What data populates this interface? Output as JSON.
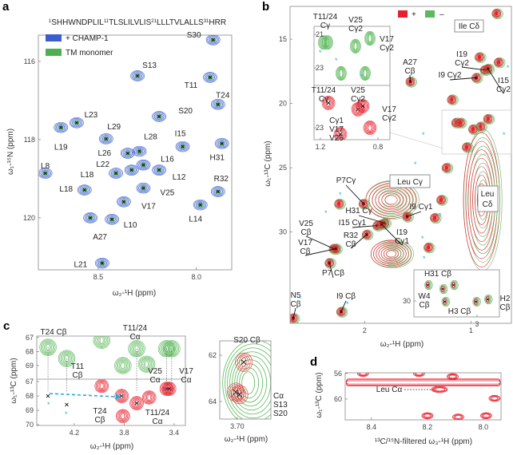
{
  "colors": {
    "champ": "#3a5fcd",
    "tm": "#4caf50",
    "plus": "#e8202e",
    "minus": "#5cb85c",
    "star": "#29a9e0"
  },
  "panel_letters": [
    "a",
    "b",
    "c",
    "d"
  ],
  "chart_data": [
    {
      "panel": "a",
      "type": "scatter",
      "sequence": [
        {
          "sup": "1",
          "text": "SHHWNDPLIL"
        },
        {
          "sup": "11",
          "text": "TLSLILVLIS"
        },
        {
          "sup": "21",
          "text": "LLLTVLALLS"
        },
        {
          "sup": "31",
          "text": "HRR"
        }
      ],
      "xlabel": "ω₂-¹H (ppm)",
      "ylabel": "ω₁-¹⁵N (ppm)",
      "xlim": [
        8.805,
        7.82
      ],
      "ylim": [
        115.33,
        121.33
      ],
      "xticks": [
        8.5,
        8.0
      ],
      "yticks": [
        116,
        118,
        120
      ],
      "legend": [
        {
          "name": "+ CHAMP-1",
          "color": "#3a5fcd"
        },
        {
          "name": "TM monomer",
          "color": "#4caf50"
        }
      ],
      "legend_position": "top-left",
      "peaks": [
        {
          "label": "S30",
          "h": 7.915,
          "n": 115.45
        },
        {
          "label": "S13",
          "h": 8.3,
          "n": 116.37
        },
        {
          "label": "T11",
          "h": 7.93,
          "n": 116.41
        },
        {
          "label": "T24",
          "h": 7.89,
          "n": 117.1
        },
        {
          "label": "S20",
          "h": 8.19,
          "n": 117.41
        },
        {
          "label": "L23",
          "h": 8.61,
          "n": 117.57
        },
        {
          "label": "L19",
          "h": 8.69,
          "n": 117.69
        },
        {
          "label": "L29",
          "h": 8.46,
          "n": 117.98
        },
        {
          "label": "L28",
          "h": 8.29,
          "n": 118.3
        },
        {
          "label": "L26",
          "h": 8.35,
          "n": 118.35
        },
        {
          "label": "I15",
          "h": 8.07,
          "n": 118.18
        },
        {
          "label": "H31",
          "h": 7.87,
          "n": 118.1
        },
        {
          "label": "L16",
          "h": 8.27,
          "n": 118.65
        },
        {
          "label": "L22",
          "h": 8.33,
          "n": 118.78
        },
        {
          "label": "L12",
          "h": 8.19,
          "n": 118.78
        },
        {
          "label": "L8",
          "h": 8.77,
          "n": 118.86
        },
        {
          "label": "L18",
          "h": 8.41,
          "n": 118.86
        },
        {
          "label": "L18",
          "h": 8.57,
          "n": 119.29
        },
        {
          "label": "V25",
          "h": 8.27,
          "n": 119.24
        },
        {
          "label": "V17",
          "h": 8.37,
          "n": 119.59
        },
        {
          "label": "R32",
          "h": 7.89,
          "n": 119.33
        },
        {
          "label": "L14",
          "h": 7.98,
          "n": 119.67
        },
        {
          "label": "A27",
          "h": 8.54,
          "n": 120.0
        },
        {
          "label": "L10",
          "h": 8.43,
          "n": 120.04
        },
        {
          "label": "L21",
          "h": 8.48,
          "n": 121.16
        }
      ]
    },
    {
      "panel": "b",
      "type": "scatter",
      "xlabel": "ω₂-¹H (ppm)",
      "ylabel": "ω₁-¹³C (ppm)",
      "xlim": [
        2.7,
        0.62
      ],
      "ylim": [
        12.45,
        37.1
      ],
      "xticks": [
        2,
        1
      ],
      "yticks": [
        15,
        20,
        25,
        30
      ],
      "legend": [
        {
          "name": "+",
          "color": "#e8202e"
        },
        {
          "name": "–",
          "color": "#5cb85c"
        }
      ],
      "legend_position": "top-right",
      "boxed_annotations": [
        {
          "lines": [
            "Ile Cδ"
          ]
        },
        {
          "lines": [
            "Leu Cγ"
          ]
        },
        {
          "lines": [
            "Leu",
            "Cδ"
          ]
        }
      ],
      "regions": [
        {
          "name": "Leu Cγ",
          "h": [
            1.5,
            2.0
          ],
          "c": [
            26.0,
            29.0
          ]
        },
        {
          "name": "Leu Cδ",
          "h": [
            0.72,
            1.08
          ],
          "c": [
            22.0,
            33.0
          ]
        },
        {
          "name": "cluster",
          "h": [
            1.55,
            1.95
          ],
          "c": [
            30.6,
            32.8
          ]
        }
      ],
      "peaks": [
        {
          "label": [
            "A27",
            "Cβ"
          ],
          "h": 1.57,
          "c": 18.3
        },
        {
          "label": [
            "I19",
            "Cγ2"
          ],
          "h": 0.87,
          "c": 17.4
        },
        {
          "label": [
            "I9 Cγ2"
          ],
          "h": 0.95,
          "c": 18.0
        },
        {
          "label": [
            "I15",
            "Cγ2"
          ],
          "h": 0.84,
          "c": 17.3
        },
        {
          "label": [
            "P7Cγ"
          ],
          "h": 2.01,
          "c": 27.8
        },
        {
          "label": [
            "I9 Cγ1"
          ],
          "h": 1.6,
          "c": 28.8
        },
        {
          "label": [
            "H31 Cγ"
          ],
          "h": 1.81,
          "c": 29.3
        },
        {
          "label": [
            "I15 Cγ1"
          ],
          "h": 1.88,
          "c": 29.5
        },
        {
          "label": [
            "I19",
            "Cγ1"
          ],
          "h": 1.84,
          "c": 29.4
        },
        {
          "label": [
            "R32",
            "Cβ"
          ],
          "h": 1.98,
          "c": 30.2
        },
        {
          "label": [
            "V25",
            "Cβ"
          ],
          "h": 2.29,
          "c": 31.3
        },
        {
          "label": [
            "V17",
            "Cβ"
          ],
          "h": 2.27,
          "c": 31.3
        },
        {
          "label": [
            "P7 Cβ"
          ],
          "h": 2.33,
          "c": 32.4
        },
        {
          "label": [
            "N5",
            "Cβ"
          ],
          "h": 2.67,
          "c": 36.7
        },
        {
          "label": [
            "I9 Cβ"
          ],
          "h": 2.22,
          "c": 36.2
        }
      ],
      "unlabeled_peaks": [
        {
          "h": 0.76,
          "c": 13.0
        },
        {
          "h": 1.14,
          "c": 21.5
        },
        {
          "h": 1.1,
          "c": 21.5
        },
        {
          "h": 0.91,
          "c": 21.8
        },
        {
          "h": 0.84,
          "c": 21.2
        },
        {
          "h": 0.98,
          "c": 22.0
        },
        {
          "h": 1.04,
          "c": 23.4
        },
        {
          "h": 1.18,
          "c": 19.7
        },
        {
          "h": 1.23,
          "c": 25.0
        },
        {
          "h": 2.24,
          "c": 27.8
        },
        {
          "h": 1.34,
          "c": 28.9
        },
        {
          "h": 1.28,
          "c": 27.5
        },
        {
          "h": 0.92,
          "c": 16.4
        },
        {
          "h": 0.74,
          "c": 16.8
        },
        {
          "h": 1.4,
          "c": 31.2
        }
      ],
      "insets": [
        {
          "name": "methyl-region",
          "xlim": [
            1.244,
            0.717
          ],
          "xticks": [
            1.2,
            0.8
          ],
          "top": {
            "sign": "-",
            "ylim": [
              20.52,
              24.05
            ],
            "yticks": [
              21,
              23
            ],
            "peaks": [
              {
                "h": 1.178,
                "c": 21.48
              },
              {
                "h": 1.15,
                "c": 21.48
              },
              {
                "h": 0.956,
                "c": 21.71
              },
              {
                "h": 0.856,
                "c": 21.24
              },
              {
                "h": 1.056,
                "c": 23.33
              },
              {
                "h": 0.889,
                "c": 23.33
              }
            ]
          },
          "bottom": {
            "sign": "+",
            "ylim": [
              20.48,
              23.71
            ],
            "yticks": [
              23
            ],
            "peaks": [
              {
                "h": 1.144,
                "c": 21.52
              },
              {
                "h": 0.939,
                "c": 21.9
              },
              {
                "h": 0.906,
                "c": 21.71
              },
              {
                "h": 1.061,
                "c": 23.38
              },
              {
                "h": 0.856,
                "c": 23.0
              }
            ]
          },
          "labels": [
            [
              "T11/24",
              "Cγ"
            ],
            [
              "V25",
              "Cγ2"
            ],
            [
              "V17",
              "Cγ2"
            ],
            [
              "T11/24",
              "Cγ"
            ],
            [
              "V25",
              "Cγ2"
            ],
            [
              "V17",
              "Cγ2"
            ],
            [
              "Cγ1",
              "V17",
              "V25"
            ]
          ]
        },
        {
          "name": "beta-region",
          "xlim": [
            3.59,
            2.79
          ],
          "xticks": [
            3
          ],
          "ylim": [
            27.58,
            31.24
          ],
          "yticks": [
            30
          ],
          "peaks": [
            {
              "h": 3.46,
              "c": 28.76
            },
            {
              "h": 3.22,
              "c": 28.76
            },
            {
              "h": 3.32,
              "c": 29.07
            },
            {
              "h": 3.3,
              "c": 30.06
            },
            {
              "h": 3.01,
              "c": 30.06
            },
            {
              "h": 2.9,
              "c": 29.88
            }
          ],
          "labels": [
            [
              "H31 Cβ"
            ],
            [
              "W4",
              "Cβ"
            ],
            [
              "H3 Cβ"
            ],
            [
              "H2",
              "Cβ"
            ]
          ]
        }
      ]
    },
    {
      "panel": "c",
      "type": "scatter",
      "subplots": [
        {
          "name": "c-left",
          "xlabel": "ω₂-¹H (ppm)",
          "ylabel": "ω₁-¹³C (ppm)",
          "xlim": [
            4.5,
            3.31
          ],
          "xticks": [
            4.2,
            3.8,
            3.4
          ],
          "top": {
            "sign": "-",
            "ylim": [
              66.9,
              69.97
            ],
            "yticks": [
              67,
              68,
              69
            ],
            "peaks": [
              {
                "h": 4.41,
                "c": 67.7
              },
              {
                "h": 4.26,
                "c": 68.5
              },
              {
                "h": 3.7,
                "c": 67.8
              },
              {
                "h": 3.46,
                "c": 67.8
              },
              {
                "h": 3.42,
                "c": 67.8
              },
              {
                "h": 3.81,
                "c": 69.0
              },
              {
                "h": 3.62,
                "c": 68.9
              },
              {
                "h": 3.98,
                "c": 67.2
              }
            ]
          },
          "bottom": {
            "sign": "+",
            "ylim": [
              66.83,
              70.05
            ],
            "yticks": [
              67,
              68,
              69,
              70
            ],
            "peaks": [
              {
                "h": 3.82,
                "c": 68.0
              },
              {
                "h": 3.7,
                "c": 68.5
              },
              {
                "h": 3.46,
                "c": 67.5
              },
              {
                "h": 3.44,
                "c": 67.5
              },
              {
                "h": 3.81,
                "c": 69.4
              },
              {
                "h": 3.98,
                "c": 67.3
              },
              {
                "h": 3.6,
                "c": 68.1
              }
            ],
            "markers": [
              {
                "h": 4.41,
                "c": 68.0
              },
              {
                "h": 4.26,
                "c": 68.6
              }
            ]
          },
          "labels": [
            [
              "T24 Cβ"
            ],
            [
              "T11/24",
              "Cα"
            ],
            [
              "T11",
              "Cβ"
            ],
            [
              "V25",
              "Cα"
            ],
            [
              "V17",
              "Cα"
            ],
            [
              "T24",
              "Cβ"
            ],
            [
              "T11/24",
              "Cα"
            ]
          ]
        },
        {
          "name": "c-right",
          "xlabel": "ω₂-¹H (ppm)",
          "xlim": [
            3.724,
            3.654
          ],
          "xticks": [
            3.7
          ],
          "ylim": [
            61.38,
            64.76
          ],
          "yticks": [
            62,
            64
          ],
          "peaks": [
            {
              "h": 3.691,
              "c": 62.3
            },
            {
              "h": 3.702,
              "c": 63.6
            },
            {
              "h": 3.697,
              "c": 63.7
            }
          ],
          "labels": [
            [
              "S20 Cβ"
            ],
            [
              "Cα",
              "S13",
              "S20"
            ]
          ]
        }
      ]
    },
    {
      "panel": "d",
      "type": "scatter",
      "xlabel": "¹³C/¹⁵N-filtered ω₃-¹H (ppm)",
      "ylabel": "ω₁-¹³C (ppm)",
      "xlim": [
        8.494,
        7.937
      ],
      "xticks": [
        8.4,
        8.2,
        8.0
      ],
      "ylim": [
        55.9,
        63.25
      ],
      "yticks": [
        56,
        60
      ],
      "peaks": [
        {
          "h": 8.157,
          "c": 58.5
        },
        {
          "h": 8.43,
          "c": 56.0
        },
        {
          "h": 8.23,
          "c": 56.0
        },
        {
          "h": 8.11,
          "c": 56.5
        },
        {
          "h": 8.2,
          "c": 62.6
        },
        {
          "h": 8.09,
          "c": 62.8
        },
        {
          "h": 7.99,
          "c": 62.6
        },
        {
          "h": 7.96,
          "c": 59.9
        }
      ],
      "band": {
        "c": 57.4,
        "h": [
          8.49,
          7.94
        ]
      },
      "labels": [
        [
          "Leu Cα"
        ]
      ]
    }
  ]
}
